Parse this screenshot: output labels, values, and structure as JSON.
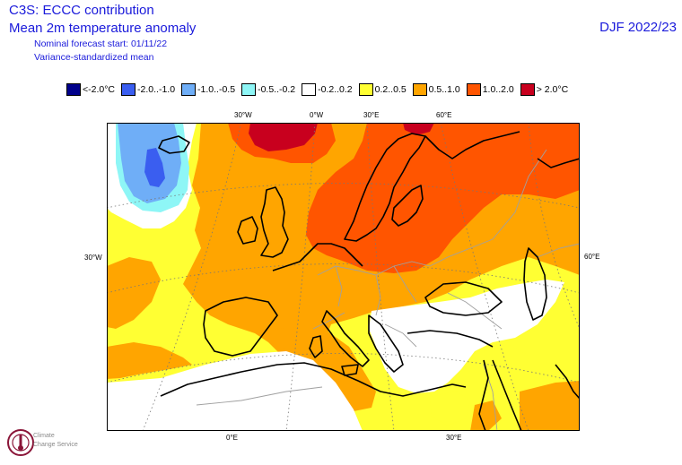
{
  "header": {
    "title_line1": "C3S: ECCC contribution",
    "title_line2": "Mean 2m temperature anomaly",
    "subtitle_line1": "Nominal forecast start: 01/11/22",
    "subtitle_line2": "Variance-standardized mean",
    "season": "DJF 2022/23"
  },
  "legend": [
    {
      "label": "<-2.0°C",
      "color": "#00008b"
    },
    {
      "label": "-2.0..-1.0",
      "color": "#3a5ef0"
    },
    {
      "label": "-1.0..-0.5",
      "color": "#6faef7"
    },
    {
      "label": "-0.5..-0.2",
      "color": "#8ef6f6"
    },
    {
      "label": "-0.2..0.2",
      "color": "#ffffff"
    },
    {
      "label": "0.2..0.5",
      "color": "#ffff33"
    },
    {
      "label": "0.5..1.0",
      "color": "#ffa500"
    },
    {
      "label": "1.0..2.0",
      "color": "#ff5500"
    },
    {
      "label": "> 2.0°C",
      "color": "#c8001e"
    }
  ],
  "axes": {
    "top": [
      "30°W",
      "0°W",
      "30°E",
      "60°E"
    ],
    "left": "30°W",
    "right": "60°E",
    "bottom": [
      "0°E",
      "30°E"
    ]
  },
  "logo": {
    "line1": "Climate",
    "line2": "Change Service"
  }
}
